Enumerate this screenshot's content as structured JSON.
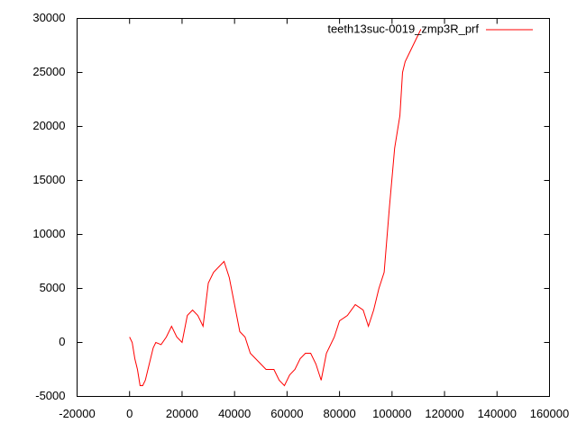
{
  "chart_data": {
    "type": "line",
    "series": [
      {
        "name": "teeth13suc-0019_zmp3R_prf",
        "color": "#ff0000",
        "x": [
          0,
          1000,
          2000,
          3000,
          4000,
          5000,
          6000,
          7000,
          8000,
          9000,
          10000,
          12000,
          14000,
          16000,
          18000,
          20000,
          22000,
          24000,
          26000,
          28000,
          30000,
          32000,
          34000,
          36000,
          38000,
          40000,
          42000,
          44000,
          46000,
          48000,
          50000,
          52000,
          55000,
          57000,
          59000,
          61000,
          63000,
          65000,
          67000,
          69000,
          71000,
          73000,
          75000,
          78000,
          80000,
          83000,
          86000,
          89000,
          91000,
          93000,
          95000,
          97000,
          99000,
          101000,
          103000,
          104000,
          105000,
          107000,
          109000,
          111000
        ],
        "values": [
          500,
          0,
          -1500,
          -2500,
          -4000,
          -4000,
          -3500,
          -2500,
          -1500,
          -500,
          0,
          -200,
          500,
          1500,
          500,
          0,
          2500,
          3000,
          2500,
          1500,
          5500,
          6500,
          7000,
          7500,
          6000,
          3500,
          1000,
          500,
          -1000,
          -1500,
          -2000,
          -2500,
          -2500,
          -3500,
          -4000,
          -3000,
          -2500,
          -1500,
          -1000,
          -1000,
          -2000,
          -3500,
          -1000,
          500,
          2000,
          2500,
          3500,
          3000,
          1500,
          3000,
          5000,
          6500,
          12500,
          18000,
          21000,
          25000,
          26000,
          27000,
          28000,
          29000
        ]
      }
    ],
    "xlim": [
      -20000,
      160000
    ],
    "xticks": [
      -20000,
      0,
      20000,
      40000,
      60000,
      80000,
      100000,
      120000,
      140000,
      160000
    ],
    "ylim": [
      -5000,
      30000
    ],
    "yticks": [
      -5000,
      0,
      5000,
      10000,
      15000,
      20000,
      25000,
      30000
    ],
    "legend": "top-right",
    "grid": false
  }
}
